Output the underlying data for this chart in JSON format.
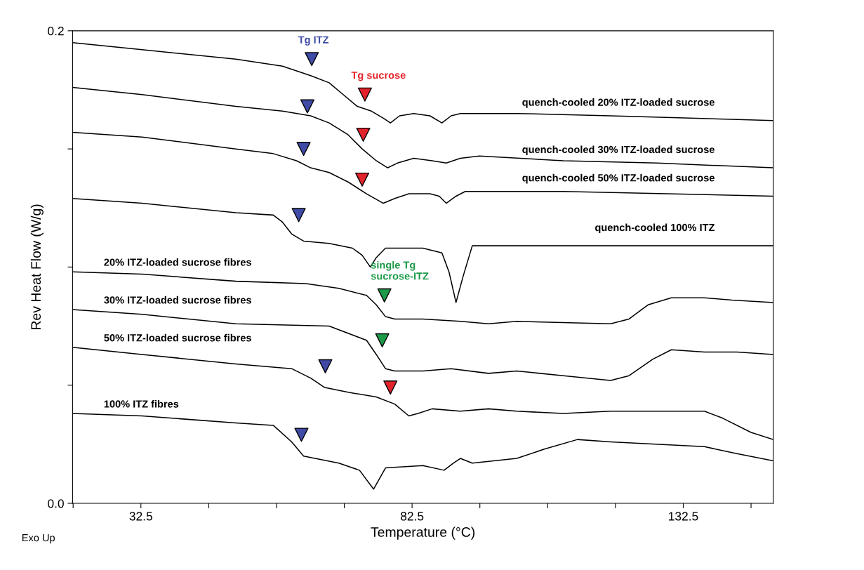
{
  "chart_data": {
    "type": "line",
    "xlabel": "Temperature (°C)",
    "ylabel": "Rev Heat Flow (W/g)",
    "xlim": [
      19.9,
      149.1
    ],
    "ylim": [
      0,
      0.2
    ],
    "xticks": [
      {
        "value": 20,
        "label": null
      },
      {
        "value": 32.5,
        "label": "32.5"
      },
      {
        "value": 45,
        "label": null
      },
      {
        "value": 57.5,
        "label": null
      },
      {
        "value": 70,
        "label": null
      },
      {
        "value": 82.5,
        "label": "82.5"
      },
      {
        "value": 95,
        "label": null
      },
      {
        "value": 107.5,
        "label": null
      },
      {
        "value": 120,
        "label": null
      },
      {
        "value": 132.5,
        "label": "132.5"
      },
      {
        "value": 145,
        "label": null
      }
    ],
    "yticks": [
      {
        "value": 0,
        "label": "0.0"
      },
      {
        "value": 0.05,
        "label": null
      },
      {
        "value": 0.1,
        "label": null
      },
      {
        "value": 0.15,
        "label": null
      },
      {
        "value": 0.2,
        "label": "0.2"
      }
    ],
    "grid": false,
    "legend": false,
    "marker": "none",
    "line_style": "solid",
    "annotations": [
      "Exo Up"
    ],
    "series": [
      {
        "name": "quench-cooled 20% ITZ-loaded sucrose",
        "color": "#000000",
        "x": [
          19.9,
          32.7,
          50.0,
          58.6,
          63.8,
          67.2,
          69.8,
          72.4,
          75.0,
          77.2,
          78.5,
          80.2,
          82.8,
          85.8,
          88.0,
          89.7,
          91.4,
          101.8,
          119.1,
          149.1
        ],
        "values": [
          0.195,
          0.192,
          0.188,
          0.185,
          0.181,
          0.178,
          0.173,
          0.168,
          0.166,
          0.163,
          0.161,
          0.164,
          0.165,
          0.164,
          0.161,
          0.164,
          0.165,
          0.165,
          0.164,
          0.162
        ]
      },
      {
        "name": "quench-cooled 30% ITZ-loaded sucrose",
        "color": "#000000",
        "x": [
          19.9,
          32.7,
          50.0,
          58.6,
          63.8,
          67.2,
          70.7,
          73.3,
          75.9,
          78.0,
          79.8,
          82.8,
          86.2,
          88.8,
          91.4,
          94.9,
          110.4,
          127.7,
          149.1
        ],
        "values": [
          0.176,
          0.173,
          0.168,
          0.166,
          0.164,
          0.161,
          0.156,
          0.15,
          0.145,
          0.142,
          0.144,
          0.146,
          0.145,
          0.144,
          0.146,
          0.147,
          0.145,
          0.144,
          0.142
        ]
      },
      {
        "name": "quench-cooled 50% ITZ-loaded sucrose",
        "color": "#000000",
        "x": [
          19.9,
          32.7,
          50.0,
          56.9,
          61.2,
          63.8,
          67.2,
          70.7,
          74.1,
          77.2,
          79.3,
          81.9,
          85.8,
          87.5,
          88.8,
          90.6,
          92.3,
          110.4,
          149.1
        ],
        "values": [
          0.157,
          0.155,
          0.15,
          0.148,
          0.145,
          0.142,
          0.14,
          0.136,
          0.131,
          0.127,
          0.129,
          0.131,
          0.131,
          0.13,
          0.127,
          0.13,
          0.132,
          0.132,
          0.13
        ]
      },
      {
        "name": "quench-cooled 100% ITZ",
        "color": "#000000",
        "x": [
          19.9,
          32.7,
          50.0,
          56.9,
          58.6,
          60.3,
          62.5,
          67.2,
          71.5,
          73.3,
          74.8,
          75.9,
          77.6,
          84.5,
          88.0,
          89.3,
          90.6,
          91.9,
          93.6,
          101.8,
          127.7,
          149.1
        ],
        "values": [
          0.129,
          0.127,
          0.123,
          0.122,
          0.119,
          0.114,
          0.111,
          0.11,
          0.108,
          0.105,
          0.1,
          0.104,
          0.108,
          0.108,
          0.106,
          0.098,
          0.085,
          0.096,
          0.109,
          0.109,
          0.109,
          0.109
        ]
      },
      {
        "name": "20% ITZ-loaded sucrose fibres",
        "color": "#000000",
        "x": [
          19.9,
          32.7,
          50.0,
          62.9,
          69.0,
          74.1,
          75.9,
          77.6,
          79.3,
          84.5,
          91.4,
          96.6,
          101.8,
          119.1,
          122.5,
          126.0,
          130.3,
          136.4,
          141.5,
          149.1
        ],
        "values": [
          0.098,
          0.097,
          0.094,
          0.093,
          0.091,
          0.088,
          0.084,
          0.079,
          0.078,
          0.078,
          0.077,
          0.076,
          0.077,
          0.076,
          0.078,
          0.084,
          0.087,
          0.087,
          0.086,
          0.085
        ]
      },
      {
        "name": "30% ITZ-loaded sucrose fibres",
        "color": "#000000",
        "x": [
          19.9,
          32.7,
          50.0,
          67.2,
          74.1,
          75.9,
          77.6,
          79.3,
          84.5,
          89.7,
          96.6,
          101.8,
          110.4,
          119.1,
          122.5,
          126.9,
          130.3,
          136.4,
          142.4,
          149.1
        ],
        "values": [
          0.082,
          0.08,
          0.076,
          0.075,
          0.069,
          0.063,
          0.057,
          0.056,
          0.056,
          0.057,
          0.055,
          0.056,
          0.054,
          0.052,
          0.054,
          0.061,
          0.065,
          0.064,
          0.064,
          0.063
        ]
      },
      {
        "name": "50% ITZ-loaded sucrose fibres",
        "color": "#000000",
        "x": [
          19.9,
          32.7,
          50.0,
          60.3,
          63.8,
          66.4,
          70.7,
          75.9,
          79.3,
          81.9,
          83.6,
          86.2,
          91.4,
          96.6,
          101.8,
          110.4,
          119.1,
          127.7,
          136.4,
          139.8,
          145.0,
          149.1
        ],
        "values": [
          0.066,
          0.063,
          0.059,
          0.057,
          0.053,
          0.049,
          0.047,
          0.045,
          0.042,
          0.037,
          0.038,
          0.04,
          0.039,
          0.04,
          0.039,
          0.038,
          0.039,
          0.039,
          0.039,
          0.036,
          0.03,
          0.027
        ]
      },
      {
        "name": "100% ITZ fibres",
        "color": "#000000",
        "x": [
          19.9,
          32.7,
          50.0,
          56.9,
          60.3,
          62.5,
          69.0,
          72.8,
          75.4,
          77.6,
          84.5,
          88.4,
          90.1,
          91.4,
          93.6,
          101.8,
          107.0,
          113.0,
          119.1,
          136.4,
          142.4,
          149.1
        ],
        "values": [
          0.038,
          0.037,
          0.034,
          0.033,
          0.026,
          0.02,
          0.017,
          0.014,
          0.006,
          0.015,
          0.016,
          0.014,
          0.017,
          0.019,
          0.017,
          0.019,
          0.023,
          0.027,
          0.026,
          0.024,
          0.021,
          0.018
        ]
      },
      {
        "name": "Tg ITZ",
        "type": "scatter",
        "marker": "triangle",
        "color": "#3f4ba6",
        "x": [
          64.0,
          63.2,
          62.5,
          61.6,
          66.5,
          62.1
        ],
        "values": [
          0.188,
          0.168,
          0.15,
          0.122,
          0.058,
          0.029
        ]
      },
      {
        "name": "Tg sucrose",
        "type": "scatter",
        "marker": "triangle",
        "color": "#e3232b",
        "x": [
          73.8,
          73.5,
          73.3,
          78.5
        ],
        "values": [
          0.173,
          0.156,
          0.137,
          0.049
        ]
      },
      {
        "name": "single Tg\nsucrose-ITZ",
        "type": "scatter",
        "marker": "triangle",
        "color": "#1c9a48",
        "x": [
          77.4,
          77.0
        ],
        "values": [
          0.088,
          0.069
        ]
      }
    ]
  }
}
